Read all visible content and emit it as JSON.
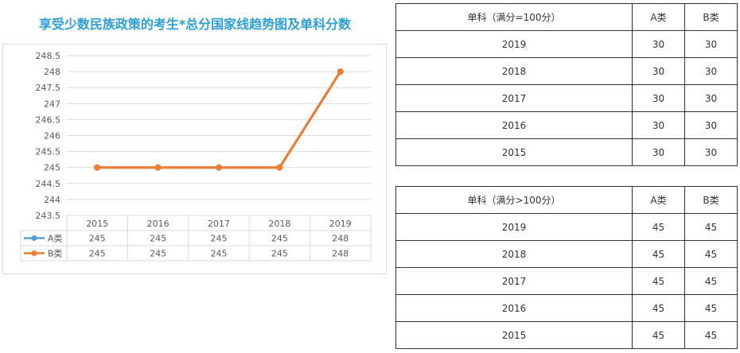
{
  "chart_data": {
    "type": "line",
    "title": "享受少数民族政策的考生*总分国家线趋势图及单科分数",
    "categories": [
      "2015",
      "2016",
      "2017",
      "2018",
      "2019"
    ],
    "series": [
      {
        "name": "A类",
        "values": [
          245,
          245,
          245,
          245,
          248
        ],
        "color": "#5b9bd5"
      },
      {
        "name": "B类",
        "values": [
          245,
          245,
          245,
          245,
          248
        ],
        "color": "#ed7d31"
      }
    ],
    "ylim": [
      243.5,
      248.5
    ],
    "yticks": [
      "248.5",
      "248",
      "247.5",
      "247",
      "246.5",
      "246",
      "245.5",
      "245",
      "244.5",
      "244",
      "243.5"
    ],
    "grid": true,
    "legend": "data-table-below"
  },
  "tables": [
    {
      "header": [
        "单科（满分=100分）",
        "A类",
        "B类"
      ],
      "rows": [
        [
          "2019",
          "30",
          "30"
        ],
        [
          "2018",
          "30",
          "30"
        ],
        [
          "2017",
          "30",
          "30"
        ],
        [
          "2016",
          "30",
          "30"
        ],
        [
          "2015",
          "30",
          "30"
        ]
      ]
    },
    {
      "header": [
        "单科（满分>100分）",
        "A类",
        "B类"
      ],
      "rows": [
        [
          "2019",
          "45",
          "45"
        ],
        [
          "2018",
          "45",
          "45"
        ],
        [
          "2017",
          "45",
          "45"
        ],
        [
          "2016",
          "45",
          "45"
        ],
        [
          "2015",
          "45",
          "45"
        ]
      ]
    }
  ]
}
